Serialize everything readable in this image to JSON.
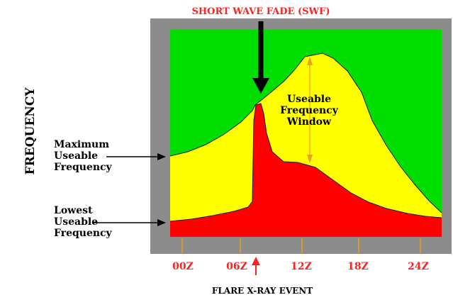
{
  "title": "SHORT WAVE FADE (SWF)",
  "y_axis_label": "FREQUENCY",
  "x_axis_caption": "FLARE X-RAY EVENT",
  "left_labels": {
    "muf": [
      "Maximum",
      "Useable",
      "Frequency"
    ],
    "luf": [
      "Lowest",
      "Useable",
      "Frequency"
    ]
  },
  "window_label": [
    "Useable",
    "Frequency",
    "Window"
  ],
  "time_ticks": [
    "00Z",
    "06Z",
    "12Z",
    "18Z",
    "24Z"
  ],
  "colors": {
    "frame": "#8c8c8c",
    "background_band": "#00dd00",
    "useable_window": "#ffff00",
    "absorbed_region": "#ff0000",
    "tick": "#e8a020",
    "accent_text": "#ff2020"
  }
}
